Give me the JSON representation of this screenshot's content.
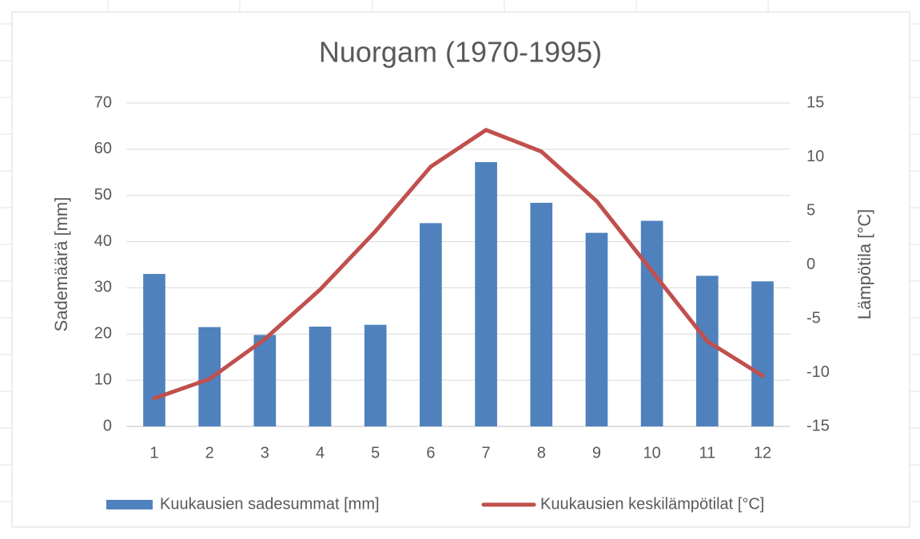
{
  "chart_data": {
    "type": "bar-line",
    "title": "Nuorgam (1970-1995)",
    "y_label": "Sademäärä [mm]",
    "y2_label": "Lämpötila [°C]",
    "categories": [
      "1",
      "2",
      "3",
      "4",
      "5",
      "6",
      "7",
      "8",
      "9",
      "10",
      "11",
      "12"
    ],
    "series": [
      {
        "name": "Kuukausien sadesummat [mm]",
        "type": "bar",
        "color": "#4f81bd",
        "axis": "y",
        "values": [
          33,
          21.5,
          19.8,
          21.6,
          22,
          44,
          57.2,
          48.4,
          41.9,
          44.5,
          32.6,
          31.4
        ]
      },
      {
        "name": "Kuukausien keskilämpötilat [°C]",
        "type": "line",
        "color": "#c0504d",
        "axis": "y2",
        "values": [
          -12.4,
          -10.6,
          -6.9,
          -2.3,
          3.1,
          9.1,
          12.5,
          10.5,
          5.9,
          -0.6,
          -7.1,
          -10.3
        ]
      }
    ],
    "ylim": [
      0,
      70
    ],
    "yticks": [
      0,
      10,
      20,
      30,
      40,
      50,
      60,
      70
    ],
    "y2lim": [
      -15,
      15
    ],
    "y2ticks": [
      -15,
      -10,
      -5,
      0,
      5,
      10,
      15
    ],
    "grid": true,
    "legend": "bottom"
  }
}
